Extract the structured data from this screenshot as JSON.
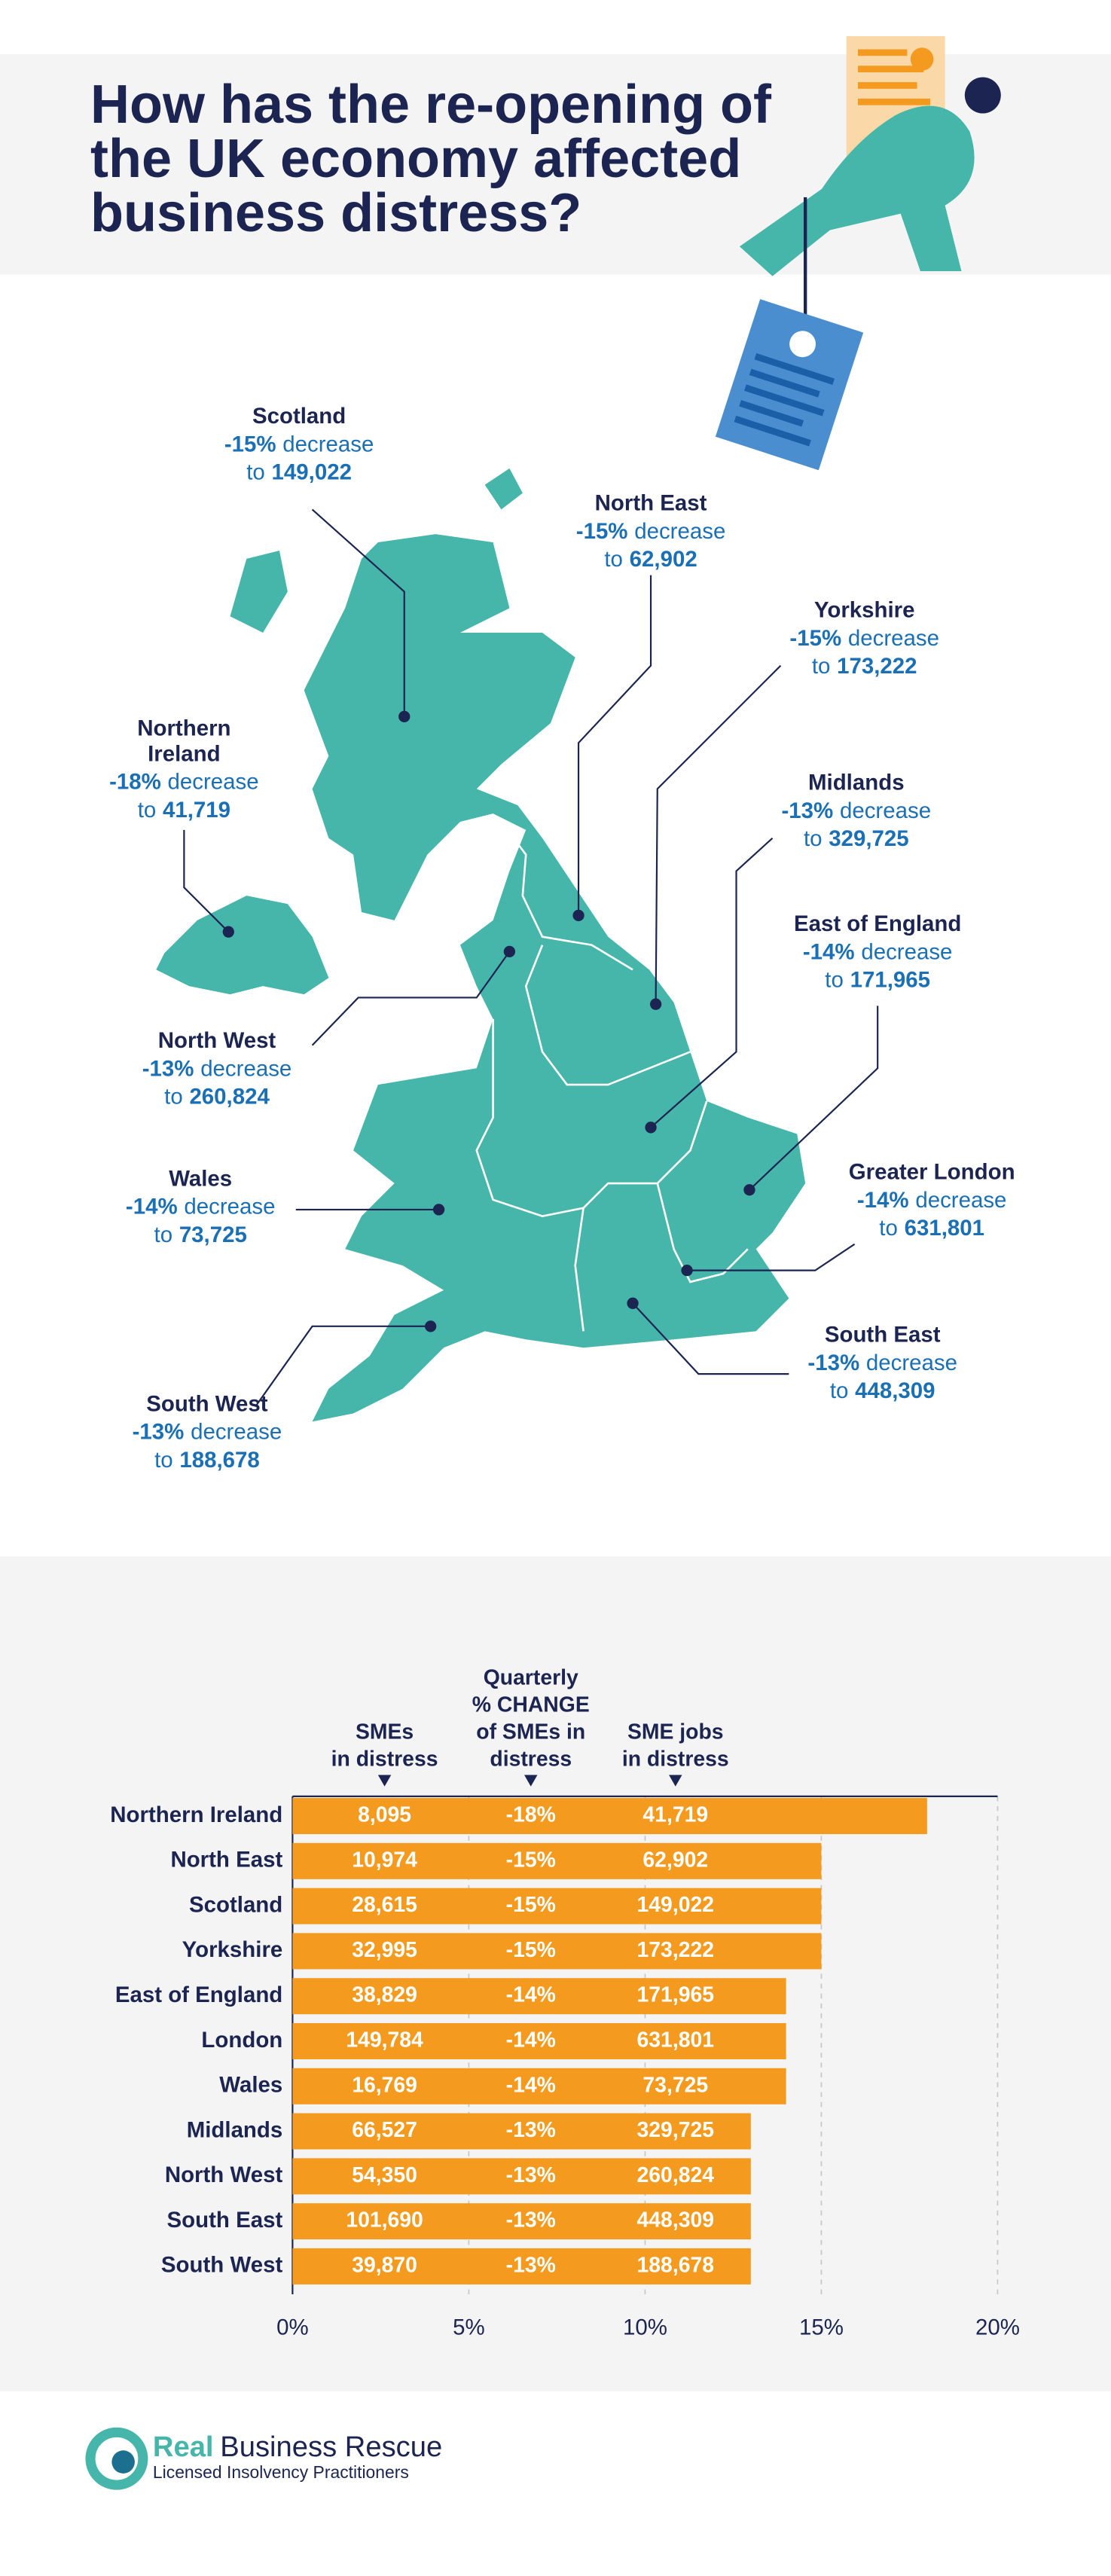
{
  "header": {
    "title_lines": [
      "How has the re-opening of",
      "the UK economy affected",
      "business distress?"
    ]
  },
  "map": {
    "regions": [
      {
        "name": [
          "Scotland"
        ],
        "change": "-15%",
        "change_text": "decrease",
        "to": "to",
        "value": "149,022"
      },
      {
        "name": [
          "North East"
        ],
        "change": "-15%",
        "change_text": "decrease",
        "to": "to",
        "value": "62,902"
      },
      {
        "name": [
          "Yorkshire"
        ],
        "change": "-15%",
        "change_text": "decrease",
        "to": "to",
        "value": "173,222"
      },
      {
        "name": [
          "Northern",
          "Ireland"
        ],
        "change": "-18%",
        "change_text": "decrease",
        "to": "to",
        "value": "41,719"
      },
      {
        "name": [
          "Midlands"
        ],
        "change": "-13%",
        "change_text": "decrease",
        "to": "to",
        "value": "329,725"
      },
      {
        "name": [
          "East of England"
        ],
        "change": "-14%",
        "change_text": "decrease",
        "to": "to",
        "value": "171,965"
      },
      {
        "name": [
          "North West"
        ],
        "change": "-13%",
        "change_text": "decrease",
        "to": "to",
        "value": "260,824"
      },
      {
        "name": [
          "Wales"
        ],
        "change": "-14%",
        "change_text": "decrease",
        "to": "to",
        "value": "73,725"
      },
      {
        "name": [
          "Greater London"
        ],
        "change": "-14%",
        "change_text": "decrease",
        "to": "to",
        "value": "631,801"
      },
      {
        "name": [
          "South East"
        ],
        "change": "-13%",
        "change_text": "decrease",
        "to": "to",
        "value": "448,309"
      },
      {
        "name": [
          "South West"
        ],
        "change": "-13%",
        "change_text": "decrease",
        "to": "to",
        "value": "188,678"
      }
    ]
  },
  "chart_data": {
    "type": "bar",
    "orientation": "horizontal",
    "categories": [
      "Northern Ireland",
      "North East",
      "Scotland",
      "Yorkshire",
      "East of England",
      "London",
      "Wales",
      "Midlands",
      "North West",
      "South East",
      "South West"
    ],
    "values": [
      18,
      15,
      15,
      15,
      14,
      14,
      14,
      13,
      13,
      13,
      13
    ],
    "color": "#f49b1f",
    "xlim": [
      0,
      20
    ],
    "xticks": [
      {
        "value": 0,
        "label": "0%"
      },
      {
        "value": 5,
        "label": "5%"
      },
      {
        "value": 10,
        "label": "10%"
      },
      {
        "value": 15,
        "label": "15%"
      },
      {
        "value": 20,
        "label": "20%"
      }
    ],
    "grid": true,
    "table": {
      "headers": [
        [
          "SMEs",
          "in distress"
        ],
        [
          "Quarterly",
          "% CHANGE",
          "of SMEs in",
          "distress"
        ],
        [
          "SME jobs",
          "in distress"
        ]
      ],
      "rows": [
        [
          "8,095",
          "-18%",
          "41,719"
        ],
        [
          "10,974",
          "-15%",
          "62,902"
        ],
        [
          "28,615",
          "-15%",
          "149,022"
        ],
        [
          "32,995",
          "-15%",
          "173,222"
        ],
        [
          "38,829",
          "-14%",
          "171,965"
        ],
        [
          "149,784",
          "-14%",
          "631,801"
        ],
        [
          "16,769",
          "-14%",
          "73,725"
        ],
        [
          "66,527",
          "-13%",
          "329,725"
        ],
        [
          "54,350",
          "-13%",
          "260,824"
        ],
        [
          "101,690",
          "-13%",
          "448,309"
        ],
        [
          "39,870",
          "-13%",
          "188,678"
        ]
      ]
    }
  },
  "footer": {
    "brand_first": "Real",
    "brand_rest": "Business Rescue",
    "tagline": "Licensed Insolvency Practitioners"
  }
}
